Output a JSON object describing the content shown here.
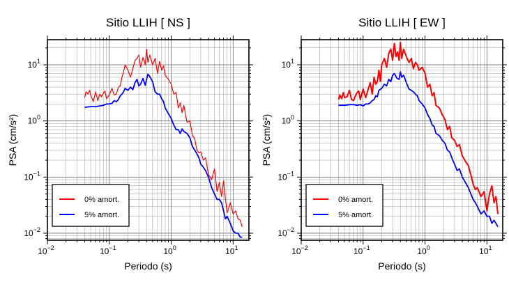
{
  "chart_data": [
    {
      "type": "line",
      "title": "Sitio LLIH [ NS ]",
      "xlabel": "Periodo (s)",
      "ylabel": "PSA (cm/s²)",
      "xscale": "log",
      "yscale": "log",
      "xlim": [
        0.01,
        18
      ],
      "ylim": [
        0.0075,
        28
      ],
      "grid": true,
      "legend_position": "bottom-left",
      "x_ticks": [
        {
          "value": 0.01,
          "base": "10",
          "exp": "−2"
        },
        {
          "value": 0.1,
          "base": "10",
          "exp": "−1"
        },
        {
          "value": 1,
          "base": "10",
          "exp": "0"
        },
        {
          "value": 10,
          "base": "10",
          "exp": "1"
        }
      ],
      "y_ticks": [
        {
          "value": 0.01,
          "base": "10",
          "exp": "−2"
        },
        {
          "value": 0.1,
          "base": "10",
          "exp": "−1"
        },
        {
          "value": 1,
          "base": "10",
          "exp": "0"
        },
        {
          "value": 10,
          "base": "10",
          "exp": "1"
        }
      ],
      "series": [
        {
          "name": "0% amort.",
          "color": "#ff0000",
          "x": [
            0.04,
            0.042,
            0.045,
            0.048,
            0.05,
            0.055,
            0.06,
            0.065,
            0.07,
            0.075,
            0.08,
            0.085,
            0.09,
            0.1,
            0.11,
            0.12,
            0.13,
            0.14,
            0.15,
            0.16,
            0.17,
            0.18,
            0.2,
            0.22,
            0.24,
            0.26,
            0.28,
            0.3,
            0.32,
            0.35,
            0.38,
            0.4,
            0.42,
            0.45,
            0.5,
            0.55,
            0.6,
            0.65,
            0.7,
            0.75,
            0.8,
            0.9,
            1.0,
            1.1,
            1.2,
            1.3,
            1.4,
            1.5,
            1.6,
            1.7,
            1.8,
            2.0,
            2.2,
            2.4,
            2.6,
            2.8,
            3.0,
            3.3,
            3.6,
            4.0,
            4.5,
            5.0,
            5.5,
            6.0,
            6.5,
            7.0,
            7.5,
            8.0,
            9.0,
            10.0,
            11.0,
            12.0,
            13.0,
            14.0
          ],
          "y": [
            2.6,
            3.3,
            3.0,
            3.5,
            2.9,
            2.2,
            3.3,
            2.3,
            3.0,
            2.7,
            3.1,
            3.4,
            2.5,
            2.9,
            3.8,
            2.9,
            3.0,
            4.0,
            4.2,
            6.0,
            7.5,
            10.0,
            8.0,
            6.0,
            8.5,
            12.0,
            13.0,
            15.0,
            9.0,
            13.5,
            10.0,
            19.0,
            11.0,
            15.0,
            10.0,
            13.0,
            7.0,
            11.5,
            8.0,
            9.5,
            6.5,
            5.5,
            4.5,
            3.0,
            3.2,
            1.7,
            2.1,
            1.4,
            1.9,
            1.3,
            0.95,
            1.0,
            0.55,
            0.48,
            0.3,
            0.27,
            0.28,
            0.2,
            0.22,
            0.11,
            0.09,
            0.14,
            0.055,
            0.08,
            0.045,
            0.085,
            0.042,
            0.023,
            0.035,
            0.022,
            0.025,
            0.018,
            0.017,
            0.013
          ]
        },
        {
          "name": "5% amort.",
          "color": "#0000ff",
          "x": [
            0.04,
            0.05,
            0.06,
            0.07,
            0.08,
            0.09,
            0.1,
            0.11,
            0.12,
            0.13,
            0.14,
            0.15,
            0.16,
            0.17,
            0.18,
            0.2,
            0.22,
            0.24,
            0.26,
            0.28,
            0.3,
            0.32,
            0.35,
            0.38,
            0.4,
            0.42,
            0.45,
            0.5,
            0.55,
            0.6,
            0.65,
            0.7,
            0.75,
            0.8,
            0.9,
            1.0,
            1.1,
            1.2,
            1.3,
            1.4,
            1.5,
            1.6,
            1.8,
            2.0,
            2.2,
            2.5,
            2.8,
            3.0,
            3.3,
            3.6,
            4.0,
            4.5,
            5.0,
            5.5,
            6.0,
            6.5,
            7.0,
            7.5,
            8.0,
            9.0,
            10.0,
            11.0,
            12.0,
            13.0,
            14.0
          ],
          "y": [
            1.75,
            1.8,
            1.8,
            1.85,
            1.9,
            2.0,
            2.0,
            2.05,
            2.3,
            2.2,
            2.4,
            2.8,
            3.0,
            3.3,
            3.8,
            3.5,
            4.0,
            3.6,
            4.8,
            5.5,
            4.2,
            4.5,
            5.7,
            4.3,
            5.5,
            6.8,
            6.2,
            5.0,
            3.3,
            3.0,
            3.0,
            2.5,
            2.2,
            1.7,
            1.35,
            1.1,
            0.85,
            0.7,
            0.7,
            0.6,
            0.72,
            0.65,
            0.6,
            0.5,
            0.35,
            0.28,
            0.22,
            0.17,
            0.15,
            0.13,
            0.1,
            0.065,
            0.05,
            0.04,
            0.04,
            0.035,
            0.025,
            0.018,
            0.02,
            0.015,
            0.011,
            0.01,
            0.01,
            0.0085,
            0.0085
          ]
        }
      ]
    },
    {
      "type": "line",
      "title": "Sitio LLIH [ EW ]",
      "xlabel": "Periodo (s)",
      "ylabel": "PSA (cm/s²)",
      "xscale": "log",
      "yscale": "log",
      "xlim": [
        0.01,
        18
      ],
      "ylim": [
        0.0075,
        28
      ],
      "grid": true,
      "legend_position": "bottom-left",
      "x_ticks": [
        {
          "value": 0.01,
          "base": "10",
          "exp": "−2"
        },
        {
          "value": 0.1,
          "base": "10",
          "exp": "−1"
        },
        {
          "value": 1,
          "base": "10",
          "exp": "0"
        },
        {
          "value": 10,
          "base": "10",
          "exp": "1"
        }
      ],
      "y_ticks": [
        {
          "value": 0.01,
          "base": "10",
          "exp": "−2"
        },
        {
          "value": 0.1,
          "base": "10",
          "exp": "−1"
        },
        {
          "value": 1,
          "base": "10",
          "exp": "0"
        },
        {
          "value": 10,
          "base": "10",
          "exp": "1"
        }
      ],
      "series": [
        {
          "name": "0% amort.",
          "color": "#ff0000",
          "x": [
            0.04,
            0.042,
            0.045,
            0.048,
            0.05,
            0.055,
            0.06,
            0.065,
            0.07,
            0.075,
            0.08,
            0.085,
            0.09,
            0.1,
            0.11,
            0.12,
            0.13,
            0.14,
            0.15,
            0.16,
            0.17,
            0.18,
            0.19,
            0.2,
            0.22,
            0.24,
            0.26,
            0.28,
            0.3,
            0.32,
            0.34,
            0.36,
            0.38,
            0.4,
            0.42,
            0.45,
            0.5,
            0.55,
            0.6,
            0.65,
            0.7,
            0.75,
            0.8,
            0.9,
            1.0,
            1.1,
            1.2,
            1.3,
            1.4,
            1.5,
            1.7,
            1.9,
            2.1,
            2.3,
            2.5,
            2.7,
            3.0,
            3.3,
            3.6,
            4.0,
            4.5,
            5.0,
            5.5,
            6.0,
            6.5,
            7.0,
            8.0,
            9.0,
            10.0,
            11.0,
            12.0,
            13.0,
            14.0,
            15.0
          ],
          "y": [
            2.4,
            2.9,
            2.5,
            3.2,
            2.6,
            2.7,
            3.5,
            2.4,
            2.3,
            2.8,
            3.2,
            3.4,
            2.4,
            3.7,
            2.6,
            3.6,
            4.8,
            3.0,
            6.0,
            4.5,
            5.0,
            8.0,
            5.0,
            10.0,
            13.0,
            9.0,
            16.0,
            19.0,
            12.0,
            24.0,
            14.0,
            17.0,
            12.0,
            25.0,
            13.0,
            19.0,
            14.0,
            11.0,
            13.0,
            8.5,
            11.0,
            10.0,
            8.0,
            9.0,
            7.0,
            4.0,
            4.5,
            2.8,
            3.2,
            1.9,
            1.7,
            1.3,
            1.05,
            0.7,
            0.8,
            0.5,
            0.45,
            0.35,
            0.38,
            0.24,
            0.19,
            0.16,
            0.11,
            0.075,
            0.06,
            0.065,
            0.045,
            0.055,
            0.025,
            0.05,
            0.07,
            0.035,
            0.045,
            0.022
          ]
        },
        {
          "name": "5% amort.",
          "color": "#0000ff",
          "x": [
            0.04,
            0.05,
            0.06,
            0.07,
            0.08,
            0.09,
            0.1,
            0.11,
            0.12,
            0.13,
            0.14,
            0.15,
            0.16,
            0.17,
            0.18,
            0.2,
            0.22,
            0.24,
            0.26,
            0.28,
            0.3,
            0.32,
            0.35,
            0.38,
            0.4,
            0.42,
            0.45,
            0.5,
            0.55,
            0.6,
            0.65,
            0.7,
            0.75,
            0.8,
            0.9,
            1.0,
            1.1,
            1.2,
            1.3,
            1.4,
            1.5,
            1.7,
            1.9,
            2.1,
            2.3,
            2.5,
            2.8,
            3.0,
            3.3,
            3.6,
            4.0,
            4.5,
            5.0,
            5.5,
            6.0,
            6.5,
            7.0,
            8.0,
            9.0,
            10.0,
            11.0,
            12.0,
            13.0,
            14.0,
            15.0
          ],
          "y": [
            1.9,
            1.9,
            1.95,
            1.95,
            1.9,
            1.95,
            1.85,
            2.0,
            2.0,
            2.1,
            2.3,
            2.4,
            2.8,
            2.7,
            3.5,
            3.8,
            4.5,
            4.2,
            5.5,
            5.0,
            6.5,
            7.0,
            5.8,
            5.5,
            7.5,
            6.0,
            6.5,
            4.8,
            3.7,
            3.5,
            3.3,
            3.0,
            2.8,
            2.3,
            2.0,
            1.7,
            1.3,
            1.1,
            0.85,
            0.8,
            0.6,
            0.55,
            0.45,
            0.4,
            0.3,
            0.28,
            0.2,
            0.17,
            0.13,
            0.14,
            0.1,
            0.08,
            0.065,
            0.05,
            0.04,
            0.035,
            0.03,
            0.022,
            0.025,
            0.02,
            0.02,
            0.015,
            0.017,
            0.015,
            0.013
          ]
        }
      ]
    }
  ]
}
